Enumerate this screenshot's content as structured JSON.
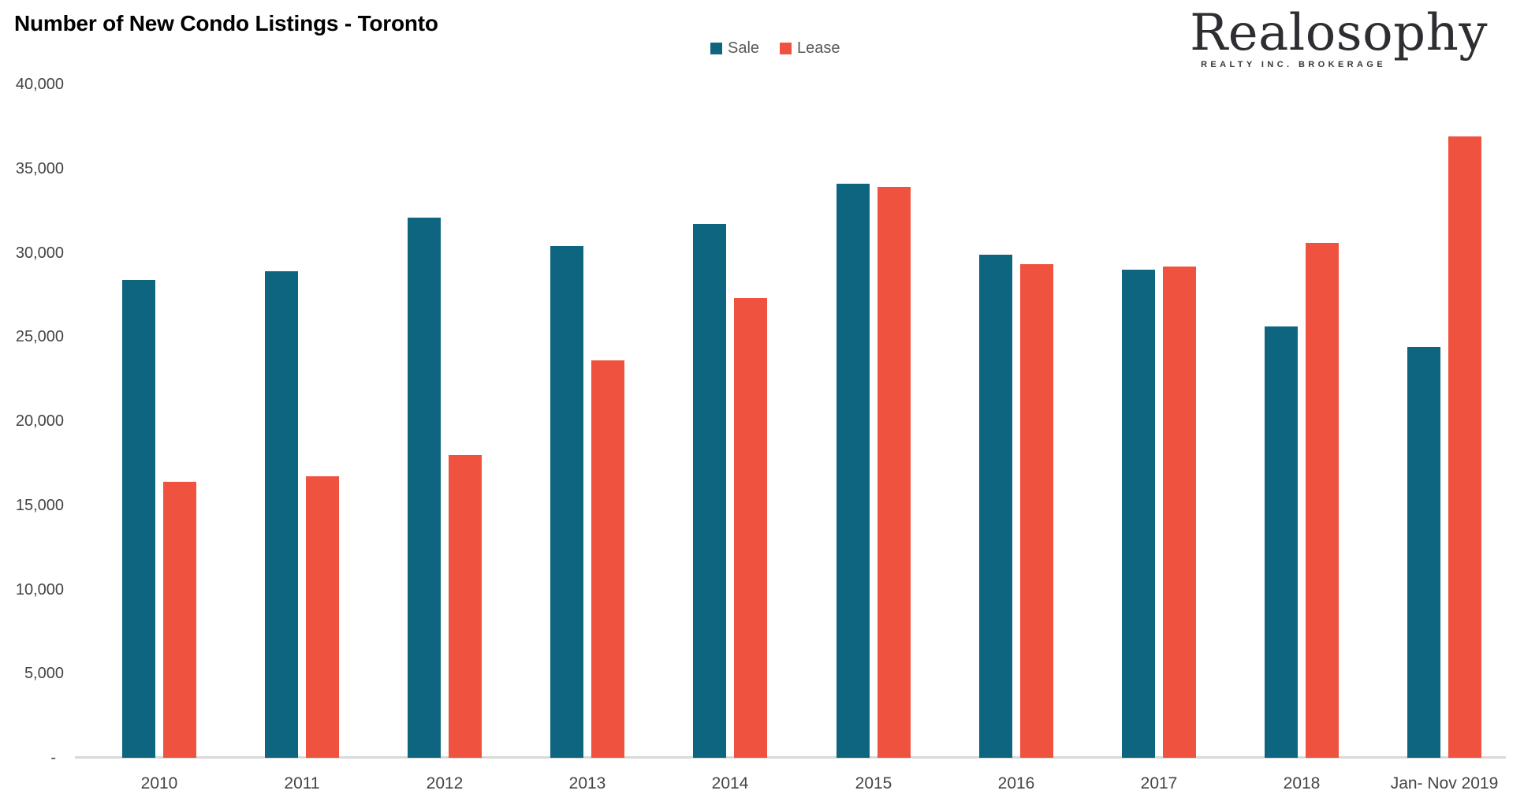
{
  "title": "Number of New Condo Listings - Toronto",
  "logo": {
    "name": "Realosophy",
    "tagline": "REALTY INC. BROKERAGE"
  },
  "legend": {
    "sale_label": "Sale",
    "lease_label": "Lease"
  },
  "colors": {
    "sale": "#0e6580",
    "lease": "#ef5340",
    "axis_line": "#d9d9d9",
    "tick_text": "#444444",
    "legend_text": "#595959",
    "title_text": "#000000"
  },
  "chart_data": {
    "type": "bar",
    "title": "Number of New Condo Listings - Toronto",
    "xlabel": "",
    "ylabel": "",
    "categories": [
      "2010",
      "2011",
      "2012",
      "2013",
      "2014",
      "2015",
      "2016",
      "2017",
      "2018",
      "Jan- Nov 2019"
    ],
    "series": [
      {
        "name": "Sale",
        "color": "#0e6580",
        "values": [
          28400,
          28900,
          32100,
          30400,
          31700,
          34100,
          29900,
          29000,
          25600,
          24400
        ]
      },
      {
        "name": "Lease",
        "color": "#ef5340",
        "values": [
          16400,
          16700,
          18000,
          23600,
          27300,
          33900,
          29300,
          29200,
          30600,
          36900
        ]
      }
    ],
    "ylim": [
      0,
      40000
    ],
    "ytick_step": 5000,
    "yticks": [
      {
        "value": 0,
        "label": "-"
      },
      {
        "value": 5000,
        "label": "5,000"
      },
      {
        "value": 10000,
        "label": "10,000"
      },
      {
        "value": 15000,
        "label": "15,000"
      },
      {
        "value": 20000,
        "label": "20,000"
      },
      {
        "value": 25000,
        "label": "25,000"
      },
      {
        "value": 30000,
        "label": "30,000"
      },
      {
        "value": 35000,
        "label": "35,000"
      },
      {
        "value": 40000,
        "label": "40,000"
      }
    ],
    "grid": false,
    "legend_position": "top-center"
  }
}
